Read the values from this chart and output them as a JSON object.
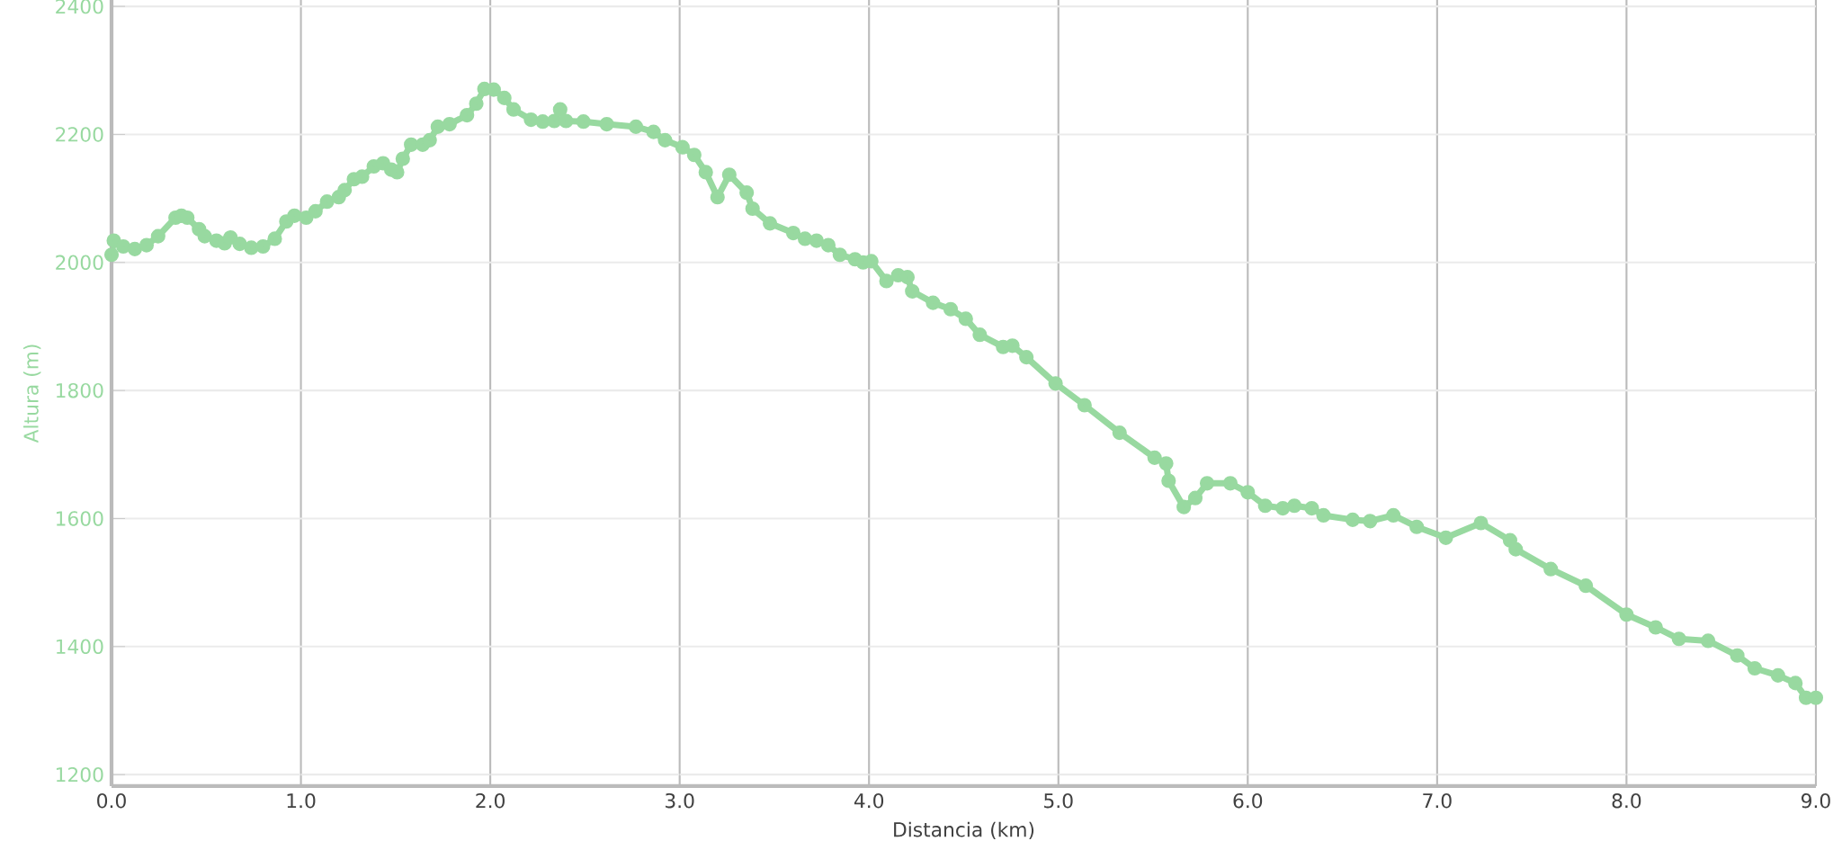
{
  "chart_data": {
    "type": "line",
    "xlabel": "Distancia (km)",
    "ylabel": "Altura (m)",
    "color": "#98d9a0",
    "marker": "circle",
    "grid": true,
    "xlim": [
      0,
      9
    ],
    "ylim": [
      1182,
      2410
    ],
    "xticks": [
      {
        "value": 0,
        "label": "0.0"
      },
      {
        "value": 1,
        "label": "1.0"
      },
      {
        "value": 2,
        "label": "2.0"
      },
      {
        "value": 3,
        "label": "3.0"
      },
      {
        "value": 4,
        "label": "4.0"
      },
      {
        "value": 5,
        "label": "5.0"
      },
      {
        "value": 6,
        "label": "6.0"
      },
      {
        "value": 7,
        "label": "7.0"
      },
      {
        "value": 8,
        "label": "8.0"
      },
      {
        "value": 9,
        "label": "9.0"
      }
    ],
    "yticks": [
      1200,
      1400,
      1600,
      1800,
      2000,
      2200,
      2400
    ],
    "x": [
      0,
      0.012,
      0.062,
      0.123,
      0.185,
      0.246,
      0.338,
      0.369,
      0.4,
      0.462,
      0.492,
      0.554,
      0.597,
      0.628,
      0.677,
      0.738,
      0.8,
      0.862,
      0.923,
      0.966,
      1.028,
      1.077,
      1.138,
      1.2,
      1.231,
      1.28,
      1.323,
      1.385,
      1.434,
      1.477,
      1.508,
      1.538,
      1.582,
      1.643,
      1.68,
      1.723,
      1.785,
      1.877,
      1.926,
      1.969,
      2.018,
      2.074,
      2.123,
      2.215,
      2.277,
      2.338,
      2.369,
      2.4,
      2.492,
      2.615,
      2.769,
      2.862,
      2.923,
      3.015,
      3.077,
      3.138,
      3.2,
      3.262,
      3.354,
      3.385,
      3.477,
      3.6,
      3.662,
      3.723,
      3.785,
      3.846,
      3.926,
      3.969,
      4.012,
      4.092,
      4.154,
      4.203,
      4.228,
      4.338,
      4.431,
      4.511,
      4.585,
      4.708,
      4.757,
      4.831,
      4.985,
      5.138,
      5.323,
      5.508,
      5.569,
      5.582,
      5.662,
      5.723,
      5.785,
      5.908,
      6.0,
      6.092,
      6.185,
      6.246,
      6.338,
      6.4,
      6.554,
      6.646,
      6.769,
      6.892,
      7.046,
      7.231,
      7.385,
      7.415,
      7.6,
      7.785,
      8.0,
      8.154,
      8.277,
      8.431,
      8.585,
      8.677,
      8.8,
      8.892,
      8.948,
      9.0
    ],
    "values": [
      2012,
      2034,
      2025,
      2021,
      2027,
      2041,
      2070,
      2073,
      2070,
      2052,
      2041,
      2034,
      2030,
      2039,
      2029,
      2023,
      2025,
      2037,
      2064,
      2073,
      2070,
      2080,
      2095,
      2102,
      2113,
      2130,
      2134,
      2150,
      2155,
      2145,
      2141,
      2162,
      2184,
      2184,
      2191,
      2212,
      2216,
      2230,
      2248,
      2271,
      2270,
      2257,
      2239,
      2223,
      2220,
      2221,
      2239,
      2221,
      2220,
      2216,
      2212,
      2204,
      2191,
      2180,
      2168,
      2141,
      2102,
      2137,
      2109,
      2084,
      2061,
      2046,
      2037,
      2034,
      2027,
      2012,
      2005,
      2000,
      2002,
      1971,
      1980,
      1977,
      1955,
      1937,
      1927,
      1912,
      1887,
      1868,
      1870,
      1852,
      1811,
      1777,
      1734,
      1695,
      1686,
      1659,
      1618,
      1632,
      1655,
      1655,
      1641,
      1620,
      1616,
      1620,
      1616,
      1605,
      1598,
      1596,
      1605,
      1587,
      1570,
      1593,
      1566,
      1552,
      1521,
      1495,
      1450,
      1430,
      1412,
      1409,
      1386,
      1366,
      1355,
      1343,
      1320,
      1320
    ]
  }
}
